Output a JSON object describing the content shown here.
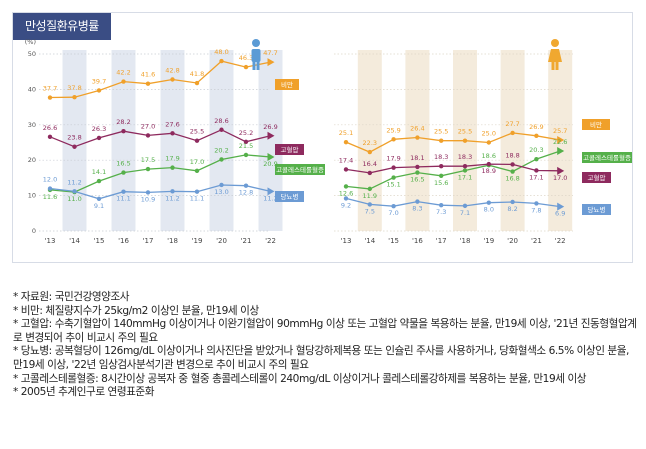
{
  "title": "만성질환유병률",
  "chart_data": [
    {
      "type": "line",
      "panel": "male",
      "categories": [
        "'13",
        "'14",
        "'15",
        "'16",
        "'17",
        "'18",
        "'19",
        "'20",
        "'21",
        "'22"
      ],
      "y_unit": "(%)",
      "ylim": [
        0,
        50
      ],
      "yticks": [
        0,
        10,
        20,
        30,
        40,
        50
      ],
      "series": [
        {
          "name": "비만",
          "color": "#f0a02a",
          "values": [
            37.7,
            37.8,
            39.7,
            42.2,
            41.6,
            42.8,
            41.8,
            48.0,
            46.3,
            47.7
          ]
        },
        {
          "name": "고혈압",
          "color": "#8e2a5e",
          "values": [
            26.6,
            23.8,
            26.3,
            28.2,
            27.0,
            27.6,
            25.5,
            28.6,
            25.2,
            26.9
          ]
        },
        {
          "name": "고콜레스테롤혈증",
          "color": "#55b04a",
          "values": [
            11.6,
            11.0,
            14.1,
            16.5,
            17.5,
            17.9,
            17.0,
            20.2,
            21.5,
            20.9
          ]
        },
        {
          "name": "당뇨병",
          "color": "#6c9bd4",
          "values": [
            12.0,
            11.2,
            9.1,
            11.1,
            10.9,
            11.2,
            11.1,
            13.0,
            12.8,
            11.2
          ]
        }
      ]
    },
    {
      "type": "line",
      "panel": "female",
      "categories": [
        "'13",
        "'14",
        "'15",
        "'16",
        "'17",
        "'18",
        "'19",
        "'20",
        "'21",
        "'22"
      ],
      "ylim": [
        0,
        50
      ],
      "series": [
        {
          "name": "비만",
          "color": "#f0a02a",
          "values": [
            25.1,
            22.3,
            25.9,
            26.4,
            25.5,
            25.5,
            25.0,
            27.7,
            26.9,
            25.7
          ]
        },
        {
          "name": "고콜레스테롤혈증",
          "color": "#55b04a",
          "values": [
            12.6,
            11.9,
            15.1,
            16.5,
            15.6,
            17.1,
            18.6,
            16.8,
            20.3,
            22.6
          ]
        },
        {
          "name": "고혈압",
          "color": "#8e2a5e",
          "values": [
            17.4,
            16.4,
            17.9,
            18.1,
            18.3,
            18.3,
            18.9,
            18.8,
            17.1,
            17.0
          ]
        },
        {
          "name": "당뇨병",
          "color": "#6c9bd4",
          "values": [
            9.2,
            7.5,
            7.0,
            8.3,
            7.3,
            7.1,
            8.0,
            8.2,
            7.8,
            6.9
          ]
        }
      ]
    }
  ],
  "notes": [
    "* 자료원: 국민건강영양조사",
    "* 비만: 체질량지수가 25kg/m2 이상인 분율, 만19세 이상",
    "* 고혈압: 수축기혈압이 140mmHg 이상이거나 이완기혈압이 90mmHg 이상 또는 고혈압 약물을 복용하는 분율, 만19세 이상, '21년 진동형혈압계로 변경되어 추이 비교시 주의 필요",
    "* 당뇨병: 공복혈당이 126mg/dL 이상이거나 의사진단을 받았거나 혈당강하제복용 또는 인슐린 주사를 사용하거나, 당화혈색소 6.5% 이상인 분율, 만19세 이상, '22년 임상검사분석기관 변경으로 추이 비교시 주의 필요",
    "* 고콜레스테롤혈증: 8시간이상 공복자 중 혈중 총콜레스테롤이 240mg/dL 이상이거나 콜레스테롤강하제를 복용하는 분율, 만19세 이상",
    "* 2005년 추계인구로 연령표준화"
  ],
  "colors": {
    "header": "#3a4d84",
    "male_band": "#e3e8f1",
    "female_band": "#f4ebdc",
    "male_icon": "#5b9bd5",
    "female_icon": "#f0a830"
  }
}
